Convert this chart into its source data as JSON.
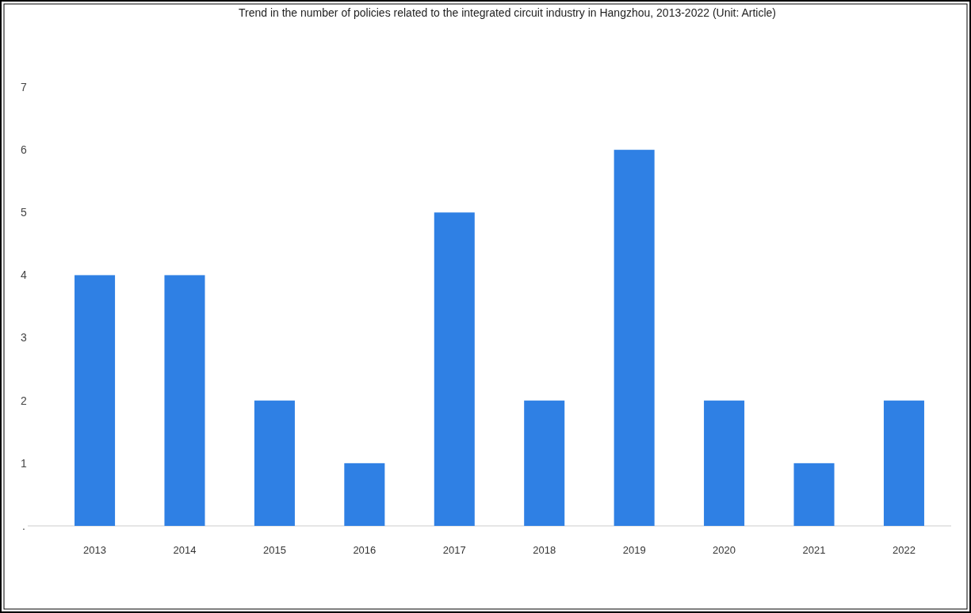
{
  "chart_data": {
    "type": "bar",
    "title": "Trend in the number of policies related to the integrated circuit industry in Hangzhou, 2013-2022 (Unit: Article)",
    "categories": [
      "2013",
      "2014",
      "2015",
      "2016",
      "2017",
      "2018",
      "2019",
      "2020",
      "2021",
      "2022"
    ],
    "values": [
      4,
      4,
      2,
      1,
      5,
      2,
      6,
      2,
      1,
      2
    ],
    "color": "#2f80e4",
    "ylim": [
      0,
      7
    ],
    "yticks": [
      {
        "value": 0,
        "label": "."
      },
      1,
      2,
      3,
      4,
      5,
      6,
      7
    ],
    "grid": false
  }
}
